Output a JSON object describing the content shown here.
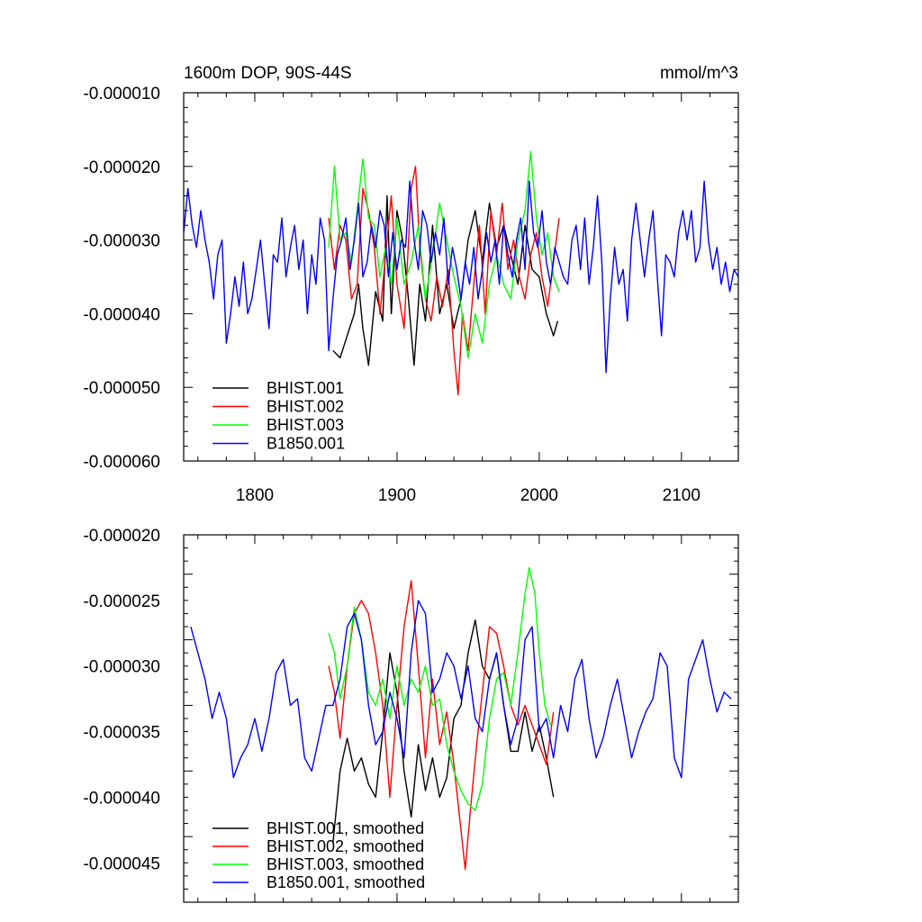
{
  "chart_data": [
    {
      "type": "line",
      "title_left": "1600m DOP, 90S-44S",
      "title_right": "mmol/m^3",
      "xlim": [
        1750,
        2140
      ],
      "ylim": [
        -6e-05,
        -1e-05
      ],
      "x_ticks": [
        1800,
        1900,
        2000,
        2100
      ],
      "x_tick_labels": [
        "1800",
        "1900",
        "2000",
        "2100"
      ],
      "y_ticks": [
        -1e-05,
        -2e-05,
        -3e-05,
        -4e-05,
        -5e-05,
        -6e-05
      ],
      "y_tick_labels": [
        "-0.000010",
        "-0.000020",
        "-0.000030",
        "-0.000040",
        "-0.000050",
        "-0.000060"
      ],
      "legend": [
        "BHIST.001",
        "BHIST.002",
        "BHIST.003",
        "B1850.001"
      ],
      "legend_position": "bottom-left",
      "series": [
        {
          "name": "BHIST.001",
          "color": "#000000",
          "x": [
            1855,
            1860,
            1865,
            1870,
            1873,
            1876,
            1880,
            1885,
            1890,
            1893,
            1896,
            1900,
            1904,
            1908,
            1912,
            1916,
            1920,
            1925,
            1930,
            1935,
            1940,
            1945,
            1950,
            1955,
            1960,
            1965,
            1970,
            1975,
            1980,
            1985,
            1990,
            1995,
            2000,
            2005,
            2010,
            2013
          ],
          "values": [
            -4.5e-05,
            -4.6e-05,
            -4.3e-05,
            -4e-05,
            -3.6e-05,
            -4.2e-05,
            -4.7e-05,
            -3.7e-05,
            -4.1e-05,
            -2.4e-05,
            -4e-05,
            -2.6e-05,
            -3e-05,
            -3.8e-05,
            -4.7e-05,
            -3.6e-05,
            -4.1e-05,
            -2.8e-05,
            -4e-05,
            -3.6e-05,
            -4.2e-05,
            -3.8e-05,
            -3e-05,
            -2.6e-05,
            -3.3e-05,
            -2.5e-05,
            -3.1e-05,
            -2.8e-05,
            -3.2e-05,
            -3.6e-05,
            -2.8e-05,
            -3.4e-05,
            -3.5e-05,
            -4e-05,
            -4.3e-05,
            -4.1e-05
          ]
        },
        {
          "name": "BHIST.002",
          "color": "#ff0000",
          "x": [
            1852,
            1856,
            1860,
            1864,
            1868,
            1872,
            1876,
            1880,
            1884,
            1888,
            1892,
            1896,
            1900,
            1905,
            1910,
            1913,
            1916,
            1920,
            1924,
            1928,
            1932,
            1936,
            1940,
            1943,
            1946,
            1950,
            1954,
            1958,
            1962,
            1966,
            1970,
            1974,
            1978,
            1982,
            1986,
            1990,
            1994,
            1998,
            2002,
            2006,
            2010,
            2014
          ],
          "values": [
            -2.7e-05,
            -3.4e-05,
            -2.8e-05,
            -3e-05,
            -3.8e-05,
            -3.6e-05,
            -2.3e-05,
            -2.6e-05,
            -3.1e-05,
            -4e-05,
            -3.2e-05,
            -2.4e-05,
            -3.6e-05,
            -4.2e-05,
            -2.3e-05,
            -2e-05,
            -3.1e-05,
            -3.8e-05,
            -4.1e-05,
            -3.5e-05,
            -3.9e-05,
            -3.4e-05,
            -4.5e-05,
            -5.1e-05,
            -4e-05,
            -4.5e-05,
            -3.6e-05,
            -2.8e-05,
            -4e-05,
            -2.6e-05,
            -3.2e-05,
            -2.5e-05,
            -3.4e-05,
            -3e-05,
            -3.5e-05,
            -3.8e-05,
            -3.2e-05,
            -2.9e-05,
            -3.5e-05,
            -3.9e-05,
            -3.3e-05,
            -2.7e-05
          ]
        },
        {
          "name": "BHIST.003",
          "color": "#00ff00",
          "x": [
            1852,
            1856,
            1860,
            1864,
            1868,
            1872,
            1876,
            1880,
            1884,
            1888,
            1892,
            1896,
            1900,
            1905,
            1910,
            1915,
            1920,
            1925,
            1930,
            1935,
            1940,
            1945,
            1950,
            1955,
            1960,
            1965,
            1970,
            1975,
            1980,
            1985,
            1990,
            1994,
            1998,
            2002,
            2006,
            2010,
            2014
          ],
          "values": [
            -3.1e-05,
            -2e-05,
            -3e-05,
            -2.9e-05,
            -3.3e-05,
            -2.6e-05,
            -1.9e-05,
            -2.7e-05,
            -2.8e-05,
            -3.5e-05,
            -3.1e-05,
            -3.6e-05,
            -2.7e-05,
            -3.6e-05,
            -3.3e-05,
            -2.8e-05,
            -3.8e-05,
            -3.2e-05,
            -2.5e-05,
            -3e-05,
            -3.5e-05,
            -3.9e-05,
            -4.6e-05,
            -4e-05,
            -4.4e-05,
            -3.6e-05,
            -3.2e-05,
            -3.6e-05,
            -3.8e-05,
            -3e-05,
            -2.6e-05,
            -1.8e-05,
            -2.7e-05,
            -3.2e-05,
            -2.9e-05,
            -3.5e-05,
            -3.7e-05
          ]
        },
        {
          "name": "B1850.001",
          "color": "#0000ff",
          "x": [
            1750,
            1753,
            1756,
            1759,
            1762,
            1765,
            1768,
            1771,
            1774,
            1777,
            1780,
            1783,
            1786,
            1789,
            1792,
            1795,
            1798,
            1801,
            1804,
            1807,
            1810,
            1813,
            1816,
            1819,
            1822,
            1825,
            1828,
            1831,
            1834,
            1837,
            1840,
            1843,
            1846,
            1849,
            1852,
            1855,
            1858,
            1861,
            1864,
            1867,
            1870,
            1873,
            1876,
            1879,
            1882,
            1885,
            1888,
            1891,
            1894,
            1897,
            1900,
            1903,
            1906,
            1909,
            1912,
            1915,
            1918,
            1921,
            1924,
            1927,
            1930,
            1933,
            1936,
            1939,
            1942,
            1945,
            1948,
            1951,
            1954,
            1957,
            1960,
            1963,
            1966,
            1969,
            1972,
            1975,
            1978,
            1981,
            1984,
            1987,
            1990,
            1993,
            1996,
            1999,
            2002,
            2005,
            2008,
            2011,
            2014,
            2017,
            2020,
            2023,
            2026,
            2029,
            2032,
            2035,
            2038,
            2041,
            2044,
            2047,
            2050,
            2053,
            2056,
            2059,
            2062,
            2065,
            2068,
            2071,
            2074,
            2077,
            2080,
            2083,
            2086,
            2089,
            2092,
            2095,
            2098,
            2101,
            2104,
            2107,
            2110,
            2113,
            2116,
            2119,
            2122,
            2125,
            2128,
            2131,
            2134,
            2137,
            2140
          ],
          "values": [
            -2.9e-05,
            -2.3e-05,
            -2.8e-05,
            -3.1e-05,
            -2.6e-05,
            -3e-05,
            -3.3e-05,
            -3.8e-05,
            -3.2e-05,
            -3e-05,
            -4.4e-05,
            -4e-05,
            -3.5e-05,
            -3.9e-05,
            -3.3e-05,
            -4e-05,
            -3.8e-05,
            -3.4e-05,
            -3e-05,
            -3.6e-05,
            -4.2e-05,
            -3.2e-05,
            -3.3e-05,
            -2.7e-05,
            -3.5e-05,
            -3.1e-05,
            -2.8e-05,
            -3.4e-05,
            -3e-05,
            -4e-05,
            -3.2e-05,
            -3.6e-05,
            -2.7e-05,
            -3e-05,
            -4.5e-05,
            -3.8e-05,
            -3.2e-05,
            -3e-05,
            -2.7e-05,
            -3.4e-05,
            -3e-05,
            -2.5e-05,
            -3.5e-05,
            -3.3e-05,
            -2.8e-05,
            -3.1e-05,
            -2.6e-05,
            -2.8e-05,
            -3.5e-05,
            -2.9e-05,
            -3.4e-05,
            -3e-05,
            -3.1e-05,
            -2.2e-05,
            -3e-05,
            -3.4e-05,
            -2.6e-05,
            -2.8e-05,
            -3.3e-05,
            -2.9e-05,
            -3.2e-05,
            -2.7e-05,
            -3.6e-05,
            -3.1e-05,
            -3.4e-05,
            -3.8e-05,
            -3.3e-05,
            -3.6e-05,
            -3.1e-05,
            -3.8e-05,
            -3.4e-05,
            -2.9e-05,
            -3.3e-05,
            -3e-05,
            -3.6e-05,
            -2.8e-05,
            -3.2e-05,
            -3.5e-05,
            -3e-05,
            -2.7e-05,
            -3.4e-05,
            -2.2e-05,
            -2.9e-05,
            -3.1e-05,
            -2.6e-05,
            -3.3e-05,
            -3.6e-05,
            -3.1e-05,
            -3.3e-05,
            -3.5e-05,
            -3.6e-05,
            -3e-05,
            -2.8e-05,
            -3.4e-05,
            -2.7e-05,
            -3.6e-05,
            -3.1e-05,
            -2.4e-05,
            -3.3e-05,
            -4.8e-05,
            -3.8e-05,
            -3.1e-05,
            -3.6e-05,
            -3.4e-05,
            -4.1e-05,
            -3e-05,
            -2.5e-05,
            -3e-05,
            -3.5e-05,
            -3e-05,
            -2.6e-05,
            -3.5e-05,
            -4.3e-05,
            -3.2e-05,
            -3.3e-05,
            -3.5e-05,
            -2.9e-05,
            -2.6e-05,
            -3e-05,
            -2.6e-05,
            -3.3e-05,
            -3.1e-05,
            -2.2e-05,
            -3e-05,
            -3.4e-05,
            -3.1e-05,
            -3.6e-05,
            -3.3e-05,
            -3.7e-05,
            -3.4e-05,
            -3.5e-05
          ]
        }
      ]
    },
    {
      "type": "line",
      "xlim": [
        1750,
        2140
      ],
      "ylim": [
        -4.8e-05,
        -2e-05
      ],
      "x_ticks": [
        1800,
        1900,
        2000,
        2100
      ],
      "y_ticks": [
        -2e-05,
        -2.5e-05,
        -3e-05,
        -3.5e-05,
        -4e-05,
        -4.5e-05
      ],
      "y_tick_labels": [
        "-0.000020",
        "-0.000025",
        "-0.000030",
        "-0.000035",
        "-0.000040",
        "-0.000045"
      ],
      "legend": [
        "BHIST.001, smoothed",
        "BHIST.002, smoothed",
        "BHIST.003, smoothed",
        "B1850.001, smoothed"
      ],
      "legend_position": "bottom-left",
      "series": [
        {
          "name": "BHIST.001, smoothed",
          "color": "#000000",
          "x": [
            1855,
            1860,
            1865,
            1870,
            1875,
            1880,
            1885,
            1890,
            1895,
            1900,
            1905,
            1910,
            1915,
            1920,
            1925,
            1930,
            1935,
            1940,
            1945,
            1950,
            1955,
            1960,
            1965,
            1970,
            1975,
            1980,
            1985,
            1990,
            1995,
            2000,
            2005,
            2010
          ],
          "values": [
            -4.35e-05,
            -3.8e-05,
            -3.55e-05,
            -3.8e-05,
            -3.7e-05,
            -3.9e-05,
            -4e-05,
            -3.5e-05,
            -2.9e-05,
            -3.2e-05,
            -3.8e-05,
            -4.15e-05,
            -3.6e-05,
            -3.95e-05,
            -3.7e-05,
            -4e-05,
            -3.85e-05,
            -3.4e-05,
            -3.3e-05,
            -2.9e-05,
            -2.65e-05,
            -3e-05,
            -3.1e-05,
            -2.9e-05,
            -3.3e-05,
            -3.65e-05,
            -3.65e-05,
            -3.35e-05,
            -3.65e-05,
            -3.45e-05,
            -3.7e-05,
            -4e-05
          ]
        },
        {
          "name": "BHIST.002, smoothed",
          "color": "#ff0000",
          "x": [
            1852,
            1856,
            1860,
            1865,
            1870,
            1875,
            1880,
            1885,
            1890,
            1895,
            1900,
            1905,
            1910,
            1915,
            1920,
            1925,
            1930,
            1935,
            1940,
            1945,
            1948,
            1952,
            1956,
            1960,
            1965,
            1970,
            1975,
            1980,
            1985,
            1990,
            1995,
            2000,
            2005,
            2010
          ],
          "values": [
            -3e-05,
            -3.2e-05,
            -3.55e-05,
            -3e-05,
            -2.6e-05,
            -2.5e-05,
            -2.6e-05,
            -2.9e-05,
            -3.3e-05,
            -4e-05,
            -3.3e-05,
            -2.7e-05,
            -2.35e-05,
            -3e-05,
            -3.7e-05,
            -3.1e-05,
            -3.6e-05,
            -3.35e-05,
            -3.75e-05,
            -4.25e-05,
            -4.55e-05,
            -4.05e-05,
            -3.6e-05,
            -3.2e-05,
            -2.7e-05,
            -2.75e-05,
            -3e-05,
            -3.3e-05,
            -3.45e-05,
            -3.3e-05,
            -3.45e-05,
            -3.6e-05,
            -3.75e-05,
            -3.35e-05
          ]
        },
        {
          "name": "BHIST.003, smoothed",
          "color": "#00ff00",
          "x": [
            1852,
            1856,
            1860,
            1865,
            1870,
            1875,
            1880,
            1885,
            1890,
            1895,
            1900,
            1905,
            1910,
            1915,
            1920,
            1925,
            1930,
            1935,
            1940,
            1945,
            1950,
            1955,
            1960,
            1965,
            1970,
            1975,
            1980,
            1985,
            1990,
            1993,
            1997,
            2000,
            2004,
            2008
          ],
          "values": [
            -2.75e-05,
            -2.9e-05,
            -3.25e-05,
            -3e-05,
            -2.55e-05,
            -2.8e-05,
            -3.2e-05,
            -3.3e-05,
            -3.1e-05,
            -3.4e-05,
            -3e-05,
            -3.3e-05,
            -3.1e-05,
            -3.2e-05,
            -3e-05,
            -3.3e-05,
            -3.25e-05,
            -3.6e-05,
            -3.8e-05,
            -3.95e-05,
            -4.05e-05,
            -4.1e-05,
            -3.9e-05,
            -3.4e-05,
            -3.1e-05,
            -3.05e-05,
            -3.3e-05,
            -2.9e-05,
            -2.45e-05,
            -2.25e-05,
            -2.45e-05,
            -2.9e-05,
            -3.3e-05,
            -3.45e-05
          ]
        },
        {
          "name": "B1850.001, smoothed",
          "color": "#0000ff",
          "x": [
            1755,
            1760,
            1765,
            1770,
            1775,
            1780,
            1785,
            1790,
            1795,
            1800,
            1805,
            1810,
            1815,
            1820,
            1825,
            1830,
            1835,
            1840,
            1845,
            1850,
            1855,
            1860,
            1865,
            1870,
            1875,
            1880,
            1885,
            1890,
            1895,
            1900,
            1905,
            1910,
            1915,
            1920,
            1925,
            1930,
            1935,
            1940,
            1945,
            1950,
            1955,
            1960,
            1965,
            1970,
            1975,
            1980,
            1985,
            1990,
            1995,
            2000,
            2005,
            2010,
            2015,
            2020,
            2025,
            2030,
            2035,
            2040,
            2045,
            2050,
            2055,
            2060,
            2065,
            2070,
            2075,
            2080,
            2085,
            2090,
            2095,
            2100,
            2105,
            2110,
            2115,
            2120,
            2125,
            2130,
            2135
          ],
          "values": [
            -2.7e-05,
            -2.9e-05,
            -3.1e-05,
            -3.4e-05,
            -3.2e-05,
            -3.4e-05,
            -3.85e-05,
            -3.7e-05,
            -3.6e-05,
            -3.4e-05,
            -3.65e-05,
            -3.4e-05,
            -3.05e-05,
            -2.95e-05,
            -3.3e-05,
            -3.25e-05,
            -3.7e-05,
            -3.8e-05,
            -3.55e-05,
            -3.3e-05,
            -3.3e-05,
            -3.1e-05,
            -2.7e-05,
            -2.6e-05,
            -2.8e-05,
            -3.3e-05,
            -3.6e-05,
            -3.5e-05,
            -3.2e-05,
            -3.4e-05,
            -3.7e-05,
            -2.9e-05,
            -2.5e-05,
            -2.6e-05,
            -3.2e-05,
            -3.1e-05,
            -2.9e-05,
            -3e-05,
            -3.25e-05,
            -3e-05,
            -3.4e-05,
            -3.5e-05,
            -3.1e-05,
            -2.9e-05,
            -3.3e-05,
            -3.6e-05,
            -3.4e-05,
            -2.8e-05,
            -2.7e-05,
            -3.5e-05,
            -3.4e-05,
            -3.7e-05,
            -3.3e-05,
            -3.5e-05,
            -3.1e-05,
            -2.95e-05,
            -3.4e-05,
            -3.7e-05,
            -3.55e-05,
            -3.3e-05,
            -3.1e-05,
            -3.4e-05,
            -3.7e-05,
            -3.5e-05,
            -3.35e-05,
            -3.25e-05,
            -2.9e-05,
            -3e-05,
            -3.7e-05,
            -3.85e-05,
            -3.1e-05,
            -2.95e-05,
            -2.8e-05,
            -3.1e-05,
            -3.35e-05,
            -3.2e-05,
            -3.25e-05
          ]
        }
      ]
    }
  ]
}
